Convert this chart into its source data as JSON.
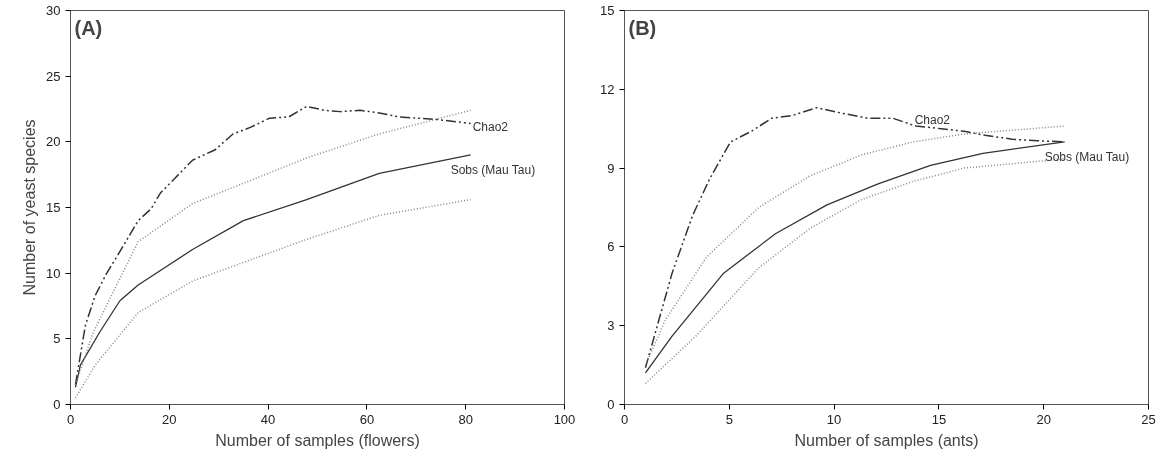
{
  "chart_data": [
    {
      "type": "line",
      "title": "(A)",
      "xlabel": "Number of samples (flowers)",
      "ylabel": "Number of yeast species",
      "xlim": [
        0,
        100
      ],
      "xticks": [
        0,
        20,
        40,
        60,
        80,
        100
      ],
      "ylim": [
        0,
        30
      ],
      "yticks": [
        0,
        5,
        10,
        15,
        20,
        25,
        30
      ],
      "grid": false,
      "legend": false,
      "marker": "none",
      "series": [
        {
          "name": "Chao2",
          "color": "#333333",
          "line_style": "dashed",
          "x": [
            1,
            3,
            5,
            7.2,
            10.4,
            13.7,
            16.3,
            18.2,
            20.8,
            24.7,
            29.3,
            32.9,
            36.4,
            40.3,
            44.2,
            47.8,
            51.4,
            54.6,
            58.6,
            62.5,
            66.4,
            70.3,
            74.2,
            81
          ],
          "values": [
            1.5,
            6,
            8.3,
            9.9,
            11.9,
            14.0,
            14.9,
            16.1,
            17.1,
            18.6,
            19.4,
            20.6,
            21.1,
            21.8,
            21.9,
            22.7,
            22.4,
            22.3,
            22.4,
            22.2,
            21.9,
            21.8,
            21.7,
            21.4
          ]
        },
        {
          "name": "Sobs (Mau Tau)",
          "color": "#333333",
          "line_style": "solid",
          "x": [
            1,
            2,
            5.9,
            10,
            13.7,
            24.7,
            35,
            47.8,
            62.5,
            81
          ],
          "values": [
            1.3,
            3,
            5.5,
            7.9,
            9.1,
            11.8,
            14,
            15.6,
            17.6,
            19.0
          ]
        },
        {
          "color": "#888888",
          "line_style": "dotted",
          "x": [
            1,
            4.6,
            13.7,
            24.7,
            48,
            62.5,
            81
          ],
          "values": [
            1.5,
            5.5,
            12.4,
            15.3,
            18.8,
            20.6,
            22.4
          ]
        },
        {
          "color": "#888888",
          "line_style": "dotted",
          "x": [
            1,
            5,
            13.7,
            24.7,
            48,
            62.5,
            81
          ],
          "values": [
            0.5,
            3,
            7.0,
            9.4,
            12.6,
            14.4,
            15.6
          ]
        }
      ]
    },
    {
      "type": "line",
      "title": "(B)",
      "xlabel": "Number of samples (ants)",
      "xlim": [
        0,
        25
      ],
      "xticks": [
        0,
        5,
        10,
        15,
        20,
        25
      ],
      "ylim": [
        0,
        15
      ],
      "yticks": [
        0,
        3,
        6,
        9,
        12,
        15
      ],
      "grid": false,
      "legend": false,
      "marker": "none",
      "series": [
        {
          "name": "Chao2",
          "color": "#333333",
          "line_style": "dashed",
          "x": [
            1,
            2.27,
            3.25,
            4.07,
            5.06,
            6.05,
            7.03,
            8.0,
            9.17,
            10.3,
            11.6,
            12.8,
            13.9,
            15.1,
            16.2,
            17.2,
            18.5,
            19.7,
            21
          ],
          "values": [
            1.4,
            5.0,
            7.2,
            8.6,
            10.0,
            10.4,
            10.9,
            11.0,
            11.3,
            11.1,
            10.9,
            10.9,
            10.6,
            10.5,
            10.4,
            10.25,
            10.1,
            10.04,
            10.0
          ]
        },
        {
          "name": "Sobs (Mau Tau)",
          "color": "#333333",
          "line_style": "solid",
          "x": [
            1,
            2.27,
            4.73,
            7.2,
            9.66,
            12.1,
            14.6,
            17.1,
            21
          ],
          "values": [
            1.2,
            2.6,
            5.0,
            6.5,
            7.6,
            8.4,
            9.1,
            9.56,
            10.0
          ]
        },
        {
          "color": "#888888",
          "line_style": "dotted",
          "x": [
            1,
            1.94,
            3.9,
            6.4,
            8.84,
            11.3,
            13.8,
            16.2,
            21
          ],
          "values": [
            1.5,
            3.2,
            5.6,
            7.5,
            8.7,
            9.5,
            10.0,
            10.3,
            10.6
          ]
        },
        {
          "color": "#888888",
          "line_style": "dotted",
          "x": [
            1,
            3.4,
            6.4,
            8.84,
            11.3,
            13.8,
            16.2,
            21
          ],
          "values": [
            0.8,
            2.6,
            5.2,
            6.7,
            7.8,
            8.5,
            9.0,
            9.35
          ]
        }
      ]
    }
  ]
}
